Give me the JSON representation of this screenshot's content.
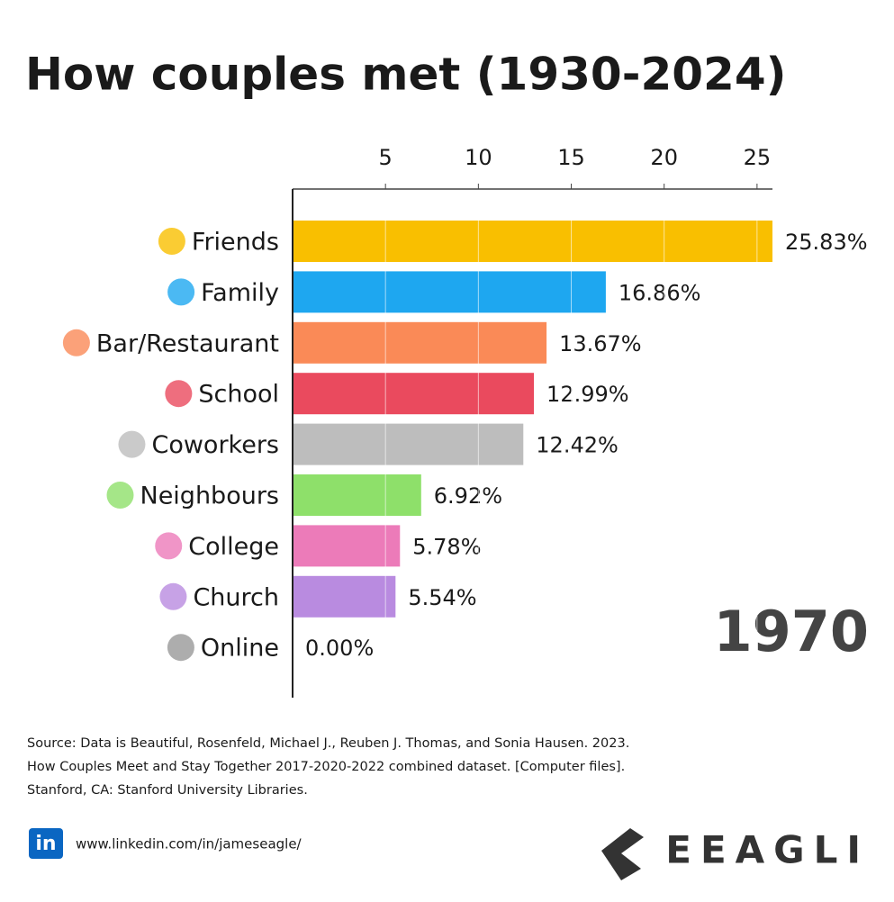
{
  "chart_data": {
    "type": "barh",
    "title": "How couples met (1930-2024)",
    "categories": [
      "Friends",
      "Family",
      "Bar/Restaurant",
      "School",
      "Coworkers",
      "Neighbours",
      "College",
      "Church",
      "Online"
    ],
    "values": [
      25.83,
      16.86,
      13.67,
      12.99,
      12.42,
      6.92,
      5.78,
      5.54,
      0.0
    ],
    "value_labels": [
      "25.83%",
      "16.86%",
      "13.67%",
      "12.99%",
      "12.42%",
      "6.92%",
      "5.78%",
      "5.54%",
      "0.00%"
    ],
    "colors": [
      "#f9bf00",
      "#1ea7f0",
      "#fa8a57",
      "#ea4a5e",
      "#bdbdbd",
      "#8ee06a",
      "#ec7bb9",
      "#b98be0",
      "#999999"
    ],
    "xlim": [
      0,
      25.83
    ],
    "xticks": [
      5,
      10,
      15,
      20,
      25
    ],
    "grid": true,
    "annotation": "1970",
    "source": [
      "Source: Data is Beautiful, Rosenfeld, Michael J., Reuben J. Thomas, and Sonia Hausen. 2023.",
      "How Couples Meet and Stay Together 2017-2020-2022 combined dataset. [Computer files].",
      "Stanford, CA: Stanford University Libraries."
    ],
    "logo": "in",
    "link": "www.linkedin.com/in/jameseagle/",
    "brand": "EEAGLI"
  }
}
